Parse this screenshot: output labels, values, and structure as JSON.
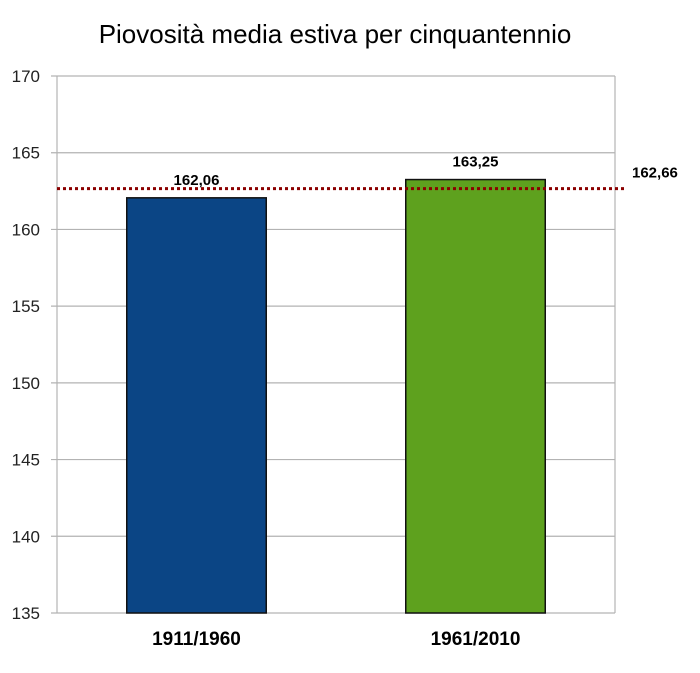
{
  "chart_data": {
    "type": "bar",
    "title": "Piovosità media estiva per cinquantennio",
    "xlabel": "",
    "ylabel": "",
    "categories": [
      "1911/1960",
      "1961/2010"
    ],
    "values": [
      162.06,
      163.25
    ],
    "data_labels": [
      "162,06",
      "163,25"
    ],
    "bar_colors": [
      "#0b4585",
      "#5ea11e"
    ],
    "ylim": [
      135,
      170
    ],
    "yticks": [
      135,
      140,
      145,
      150,
      155,
      160,
      165,
      170
    ],
    "grid": true,
    "reference_line": {
      "value": 162.66,
      "label": "162,66",
      "color": "#8b0000",
      "style": "dotted"
    }
  }
}
